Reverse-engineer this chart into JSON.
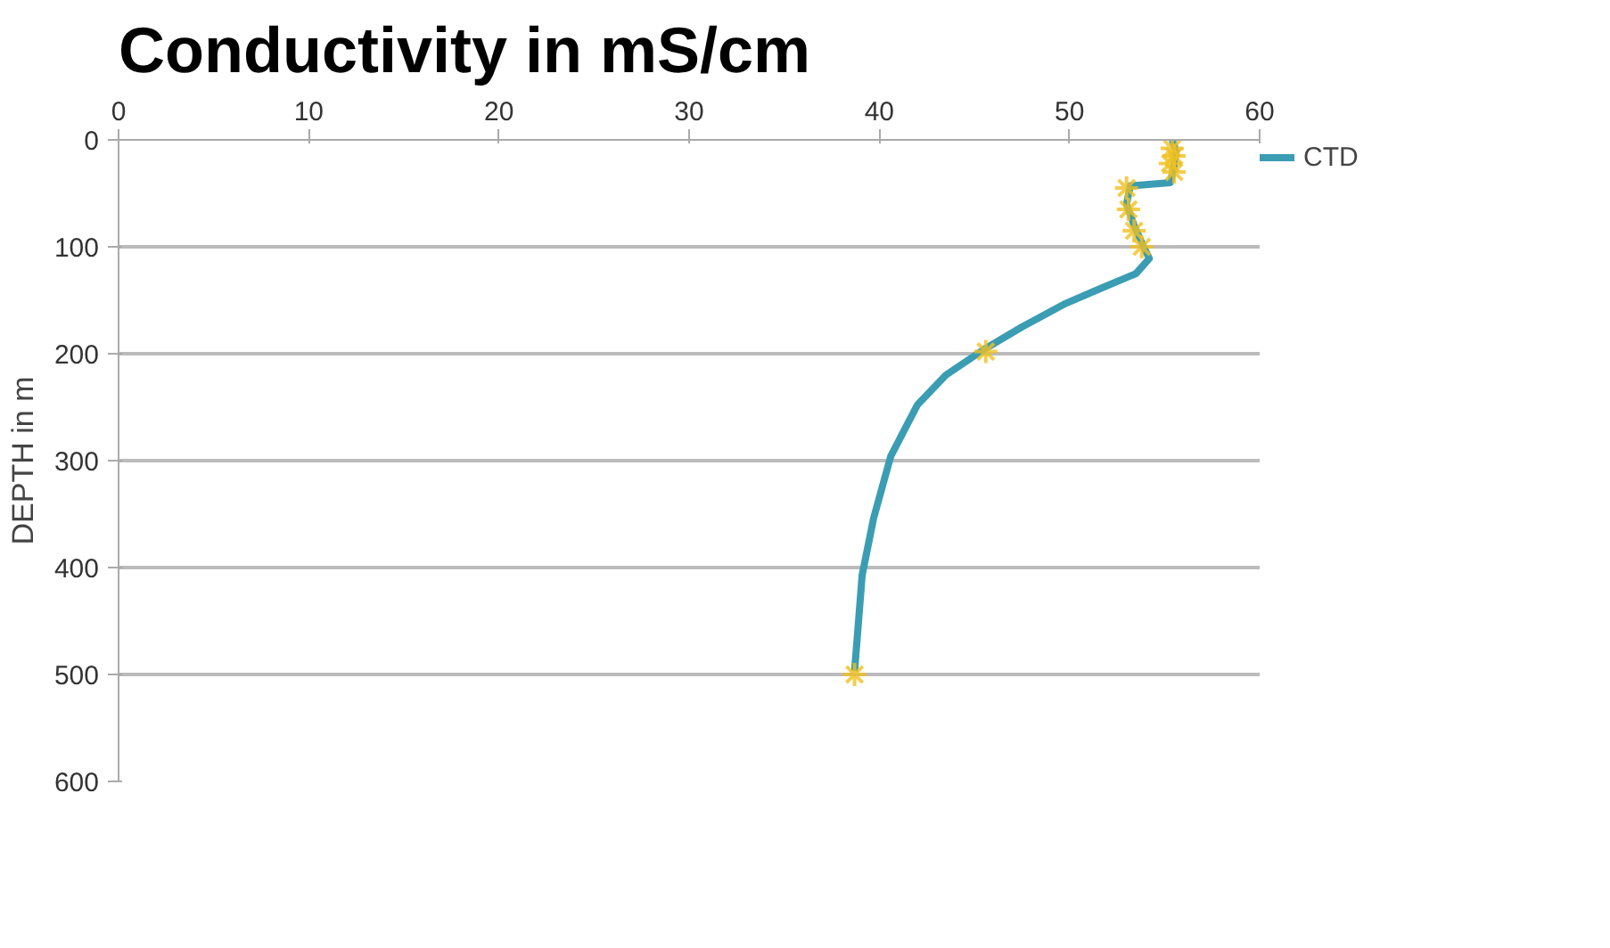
{
  "chart_data": {
    "type": "line",
    "title": "Conductivity in mS/cm",
    "ylabel": "DEPTH in m",
    "xlim": [
      0,
      60
    ],
    "xticks": [
      0,
      10,
      20,
      30,
      40,
      50,
      60
    ],
    "ylim": [
      600,
      0
    ],
    "yticks": [
      0,
      100,
      200,
      300,
      400,
      500,
      600
    ],
    "grid": "y",
    "legend": "top right",
    "line_style": "solid",
    "series": [
      {
        "name": "CTD",
        "color": "#3a9db3",
        "type": "line",
        "marker": "none",
        "x": [
          55.4,
          55.6,
          55.5,
          55.3,
          53.2,
          53.0,
          53.4,
          53.9,
          54.2,
          53.5,
          51.5,
          49.8,
          47.5,
          45.5,
          43.5,
          42.0,
          40.6,
          39.7,
          39.1,
          38.7
        ],
        "values": [
          0,
          10,
          25,
          40,
          43,
          60,
          80,
          100,
          111,
          125,
          140,
          153,
          175,
          196,
          220,
          248,
          296,
          354,
          407,
          497
        ]
      },
      {
        "color": "#f0c020",
        "type": "scatter",
        "marker": "cross",
        "x": [
          55.4,
          55.5,
          55.3,
          55.5,
          53.0,
          53.1,
          53.4,
          53.8,
          45.6,
          38.7
        ],
        "values": [
          8,
          15,
          22,
          30,
          45,
          65,
          85,
          100,
          198,
          500
        ]
      }
    ]
  }
}
